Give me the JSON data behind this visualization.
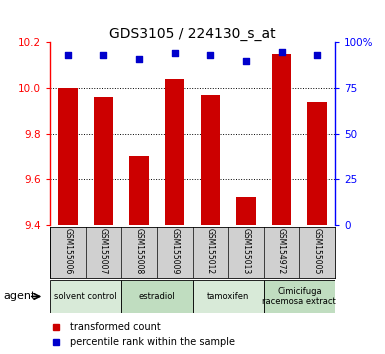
{
  "title": "GDS3105 / 224130_s_at",
  "samples": [
    "GSM155006",
    "GSM155007",
    "GSM155008",
    "GSM155009",
    "GSM155012",
    "GSM155013",
    "GSM154972",
    "GSM155005"
  ],
  "bar_values": [
    10.0,
    9.96,
    9.7,
    10.04,
    9.97,
    9.52,
    10.15,
    9.94
  ],
  "percentile_values": [
    93,
    93,
    91,
    94,
    93,
    90,
    95,
    93
  ],
  "ylim": [
    9.4,
    10.2
  ],
  "ylim_right": [
    0,
    100
  ],
  "yticks_left": [
    9.4,
    9.6,
    9.8,
    10.0,
    10.2
  ],
  "yticks_right": [
    0,
    25,
    50,
    75,
    100
  ],
  "bar_color": "#cc0000",
  "dot_color": "#0000cc",
  "bar_width": 0.55,
  "groups": [
    {
      "label": "solvent control",
      "start": 0,
      "end": 2
    },
    {
      "label": "estradiol",
      "start": 2,
      "end": 4
    },
    {
      "label": "tamoxifen",
      "start": 4,
      "end": 6
    },
    {
      "label": "Cimicifuga\nracemosa extract",
      "start": 6,
      "end": 8
    }
  ],
  "group_colors": [
    "#d8ead8",
    "#c0ddc0",
    "#d8ead8",
    "#c0ddc0"
  ],
  "sample_area_color": "#d0d0d0",
  "agent_label": "agent",
  "legend_bar_label": "transformed count",
  "legend_dot_label": "percentile rank within the sample",
  "background_color": "#ffffff",
  "title_fontsize": 10,
  "tick_fontsize": 7.5,
  "sample_fontsize": 5.5,
  "group_fontsize": 6,
  "legend_fontsize": 7
}
